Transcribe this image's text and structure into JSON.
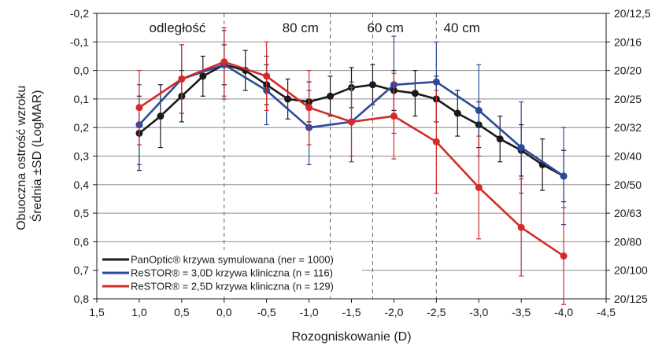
{
  "chart_data": {
    "type": "line",
    "xlabel": "Rozogniskowanie (D)",
    "ylabel_lines": [
      "Obuoczna ostrość wzroku",
      "Średnia ±SD (LogMAR)"
    ],
    "xlim": [
      1.5,
      -4.5
    ],
    "ylim": [
      -0.2,
      0.8
    ],
    "x_ticks": [
      {
        "value": 1.5,
        "label": "1,5"
      },
      {
        "value": 1.0,
        "label": "1,0"
      },
      {
        "value": 0.5,
        "label": "0,5"
      },
      {
        "value": 0.0,
        "label": "0,0"
      },
      {
        "value": -0.5,
        "label": "-0,5"
      },
      {
        "value": -1.0,
        "label": "-1,0"
      },
      {
        "value": -1.5,
        "label": "-1,5"
      },
      {
        "value": -2.0,
        "label": "-2,0"
      },
      {
        "value": -2.5,
        "label": "-2,5"
      },
      {
        "value": -3.0,
        "label": "-3,0"
      },
      {
        "value": -3.5,
        "label": "-3,5"
      },
      {
        "value": -4.0,
        "label": "-4,0"
      },
      {
        "value": -4.5,
        "label": "-4,5"
      }
    ],
    "y_ticks": [
      {
        "value": -0.2,
        "label": "-0,2"
      },
      {
        "value": -0.1,
        "label": "-0,1"
      },
      {
        "value": 0.0,
        "label": "0,0"
      },
      {
        "value": 0.1,
        "label": "0,1"
      },
      {
        "value": 0.2,
        "label": "0,2"
      },
      {
        "value": 0.3,
        "label": "0,3"
      },
      {
        "value": 0.4,
        "label": "0,4"
      },
      {
        "value": 0.5,
        "label": "0,5"
      },
      {
        "value": 0.6,
        "label": "0,6"
      },
      {
        "value": 0.7,
        "label": "0,7"
      },
      {
        "value": 0.8,
        "label": "0,8"
      }
    ],
    "y2_ticks": [
      {
        "value": -0.2,
        "label": "20/12,5"
      },
      {
        "value": -0.1,
        "label": "20/16"
      },
      {
        "value": 0.0,
        "label": "20/20"
      },
      {
        "value": 0.1,
        "label": "20/25"
      },
      {
        "value": 0.2,
        "label": "20/32"
      },
      {
        "value": 0.3,
        "label": "20/40"
      },
      {
        "value": 0.4,
        "label": "20/50"
      },
      {
        "value": 0.5,
        "label": "20/63"
      },
      {
        "value": 0.6,
        "label": "20/80"
      },
      {
        "value": 0.7,
        "label": "20/100"
      },
      {
        "value": 0.8,
        "label": "20/125"
      }
    ],
    "region_lines": [
      0.0,
      -1.25,
      -1.75,
      -2.5
    ],
    "regions": [
      {
        "label": "odległość",
        "x": 0.55
      },
      {
        "label": "80 cm",
        "x": -0.9
      },
      {
        "label": "60 cm",
        "x": -1.9
      },
      {
        "label": "40 cm",
        "x": -2.8
      }
    ],
    "grid": "horizontal",
    "legend_position": "bottom-left",
    "series": [
      {
        "name": "PanOptic® krzywa symulowana (ner = 1000)",
        "color": "#1a1a1a",
        "points": [
          {
            "x": 1.0,
            "y": 0.22,
            "sd": 0.13
          },
          {
            "x": 0.75,
            "y": 0.16,
            "sd": 0.11
          },
          {
            "x": 0.5,
            "y": 0.09,
            "sd": 0.09
          },
          {
            "x": 0.25,
            "y": 0.02,
            "sd": 0.07
          },
          {
            "x": 0.0,
            "y": -0.02,
            "sd": 0.07
          },
          {
            "x": -0.25,
            "y": 0.0,
            "sd": 0.07
          },
          {
            "x": -0.5,
            "y": 0.05,
            "sd": 0.07
          },
          {
            "x": -0.75,
            "y": 0.1,
            "sd": 0.07
          },
          {
            "x": -1.0,
            "y": 0.11,
            "sd": 0.07
          },
          {
            "x": -1.25,
            "y": 0.09,
            "sd": 0.07
          },
          {
            "x": -1.5,
            "y": 0.06,
            "sd": 0.07
          },
          {
            "x": -1.75,
            "y": 0.05,
            "sd": 0.07
          },
          {
            "x": -2.0,
            "y": 0.07,
            "sd": 0.07
          },
          {
            "x": -2.25,
            "y": 0.08,
            "sd": 0.08
          },
          {
            "x": -2.5,
            "y": 0.1,
            "sd": 0.08
          },
          {
            "x": -2.75,
            "y": 0.15,
            "sd": 0.08
          },
          {
            "x": -3.0,
            "y": 0.19,
            "sd": 0.08
          },
          {
            "x": -3.25,
            "y": 0.24,
            "sd": 0.08
          },
          {
            "x": -3.5,
            "y": 0.28,
            "sd": 0.09
          },
          {
            "x": -3.75,
            "y": 0.33,
            "sd": 0.09
          },
          {
            "x": -4.0,
            "y": 0.37,
            "sd": 0.09
          }
        ]
      },
      {
        "name": "ReSTOR® = 3,0D krzywa kliniczna (n = 116)",
        "color": "#2b4a9a",
        "points": [
          {
            "x": 1.0,
            "y": 0.19,
            "sd": 0.14
          },
          {
            "x": 0.5,
            "y": 0.03,
            "sd": 0.12
          },
          {
            "x": 0.0,
            "y": -0.02,
            "sd": 0.12
          },
          {
            "x": -0.5,
            "y": 0.07,
            "sd": 0.12
          },
          {
            "x": -1.0,
            "y": 0.2,
            "sd": 0.13
          },
          {
            "x": -1.5,
            "y": 0.18,
            "sd": 0.14
          },
          {
            "x": -2.0,
            "y": 0.05,
            "sd": 0.17
          },
          {
            "x": -2.5,
            "y": 0.04,
            "sd": 0.14
          },
          {
            "x": -3.0,
            "y": 0.14,
            "sd": 0.16
          },
          {
            "x": -3.5,
            "y": 0.27,
            "sd": 0.16
          },
          {
            "x": -4.0,
            "y": 0.37,
            "sd": 0.17
          }
        ]
      },
      {
        "name": "ReSTOR® = 2,5D krzywa kliniczna (n = 129)",
        "color": "#d42a2a",
        "points": [
          {
            "x": 1.0,
            "y": 0.13,
            "sd": 0.13
          },
          {
            "x": 0.5,
            "y": 0.03,
            "sd": 0.12
          },
          {
            "x": 0.0,
            "y": -0.03,
            "sd": 0.12
          },
          {
            "x": -0.5,
            "y": 0.02,
            "sd": 0.12
          },
          {
            "x": -1.0,
            "y": 0.13,
            "sd": 0.13
          },
          {
            "x": -1.5,
            "y": 0.18,
            "sd": 0.12
          },
          {
            "x": -2.0,
            "y": 0.16,
            "sd": 0.15
          },
          {
            "x": -2.5,
            "y": 0.25,
            "sd": 0.18
          },
          {
            "x": -3.0,
            "y": 0.41,
            "sd": 0.18
          },
          {
            "x": -3.5,
            "y": 0.55,
            "sd": 0.17
          },
          {
            "x": -4.0,
            "y": 0.65,
            "sd": 0.17
          }
        ]
      }
    ]
  }
}
